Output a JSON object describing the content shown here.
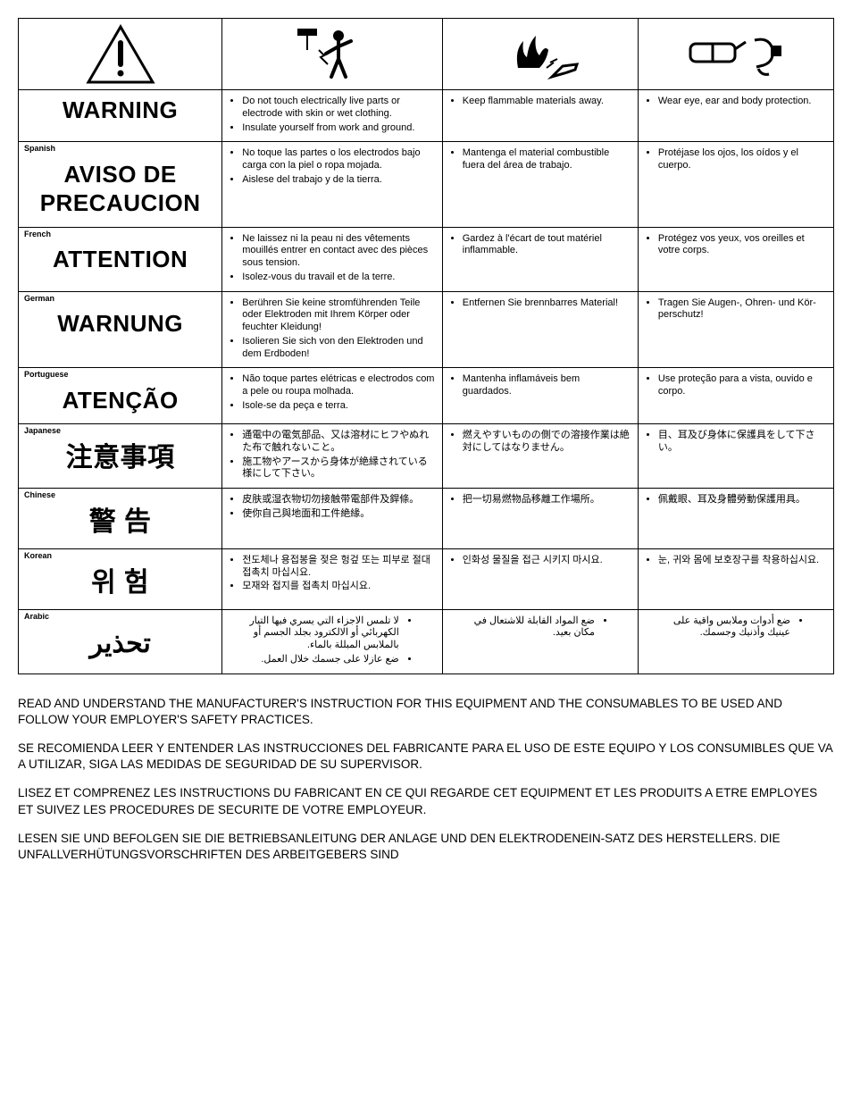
{
  "icons": {
    "alert": "alert-triangle",
    "shock": "electric-person",
    "fire": "flames-hand",
    "ppe": "goggles-earplugs"
  },
  "rows": [
    {
      "lang_label": "",
      "heading": "WARNING",
      "heading_class": "",
      "cells": [
        [
          "Do not touch electrically live parts or electrode with skin or wet clothing.",
          "Insulate yourself from work and ground."
        ],
        [
          "Keep flammable materials away."
        ],
        [
          "Wear eye, ear and body protection."
        ]
      ]
    },
    {
      "lang_label": "Spanish",
      "heading": "AVISO DE PRECAUCION",
      "heading_class": "",
      "cells": [
        [
          "No toque las partes o los electrodos bajo carga con la piel o ropa mojada.",
          "Aislese del trabajo y de la tierra."
        ],
        [
          "Mantenga el material combustible fuera del área de trabajo."
        ],
        [
          "Protéjase los ojos, los oídos y el cuerpo."
        ]
      ]
    },
    {
      "lang_label": "French",
      "heading": "ATTENTION",
      "heading_class": "",
      "cells": [
        [
          "Ne laissez ni la peau ni des vêtements mouillés entrer en contact avec des pièces sous tension.",
          "Isolez-vous du travail et de la terre."
        ],
        [
          "Gardez à l'écart de tout matériel inflammable."
        ],
        [
          "Protégez vos yeux, vos oreilles et votre corps."
        ]
      ]
    },
    {
      "lang_label": "German",
      "heading": "WARNUNG",
      "heading_class": "",
      "cells": [
        [
          "Berühren Sie keine stromführenden Teile oder Elektroden mit Ihrem Körper oder feuchter Kleidung!",
          "Isolieren Sie sich von den Elektroden und dem Erdboden!"
        ],
        [
          "Entfernen Sie brennbarres Material!"
        ],
        [
          "Tragen Sie Augen-, Ohren- und Kör-perschutz!"
        ]
      ]
    },
    {
      "lang_label": "Portuguese",
      "heading": "ATENÇÃO",
      "heading_class": "",
      "cells": [
        [
          "Não toque partes elétricas e electrodos com a pele ou roupa molhada.",
          "Isole-se da peça e terra."
        ],
        [
          "Mantenha inflamáveis bem guardados."
        ],
        [
          "Use proteção para a vista, ouvido e corpo."
        ]
      ]
    },
    {
      "lang_label": "Japanese",
      "heading": "注意事項",
      "heading_class": "cjk",
      "cells": [
        [
          "通電中の電気部品、又は溶材にヒフやぬれた布で触れないこと。",
          "施工物やアースから身体が絶縁されている様にして下さい。"
        ],
        [
          "燃えやすいものの側での溶接作業は絶対にしてはなりません。"
        ],
        [
          "目、耳及び身体に保護具をして下さい。"
        ]
      ]
    },
    {
      "lang_label": "Chinese",
      "heading": "警 告",
      "heading_class": "cjk",
      "cells": [
        [
          "皮肤或湿衣物切勿接触带電部件及銲條。",
          "使你自己與地面和工件絶緣。"
        ],
        [
          "把一切易燃物品移離工作場所。"
        ],
        [
          "佩戴眼、耳及身體勞動保護用具。"
        ]
      ]
    },
    {
      "lang_label": "Korean",
      "heading": "위 험",
      "heading_class": "cjk",
      "cells": [
        [
          "전도체나 용접봉을 젖은 헝겊 또는 피부로 절대 접촉치 마십시요.",
          "모재와 접지를 접촉치 마십시요."
        ],
        [
          "인화성 물질을 접근 시키지 마시요."
        ],
        [
          "눈, 귀와 몸에 보호장구를 착용하십시요."
        ]
      ]
    },
    {
      "lang_label": "Arabic",
      "heading": "تحذير",
      "heading_class": "cjk",
      "rtl": true,
      "cells": [
        [
          "لا تلمس الاجزاء التي يسري فيها التيار الكهربائي أو الالكترود بجلد الجسم أو بالملابس المبللة بالماء.",
          "ضع عازلا على جسمك خلال العمل."
        ],
        [
          "ضع المواد القابلة للاشتعال في مكان بعيد."
        ],
        [
          "ضع أدوات وملابس واقية على عينيك وأذنيك وجسمك."
        ]
      ]
    }
  ],
  "footer": [
    "READ AND UNDERSTAND THE MANUFACTURER'S INSTRUCTION FOR THIS EQUIPMENT AND THE CONSUMABLES TO BE USED AND FOLLOW YOUR EMPLOYER'S SAFETY PRACTICES.",
    "SE RECOMIENDA LEER Y ENTENDER LAS INSTRUCCIONES DEL FABRICANTE PARA EL USO DE ESTE EQUIPO Y LOS CONSUMIBLES QUE VA A UTILIZAR, SIGA LAS MEDIDAS DE SEGURIDAD DE SU SUPERVISOR.",
    "LISEZ ET COMPRENEZ LES INSTRUCTIONS DU FABRICANT EN CE QUI REGARDE CET EQUIPMENT ET LES PRODUITS A ETRE EMPLOYES ET SUIVEZ LES PROCEDURES DE SECURITE DE VOTRE EMPLOYEUR.",
    "LESEN SIE UND BEFOLGEN SIE DIE BETRIEBSANLEITUNG DER ANLAGE UND DEN ELEKTRODENEIN-SATZ DES HERSTELLERS. DIE UNFALLVERHÜTUNGSVORSCHRIFTEN DES ARBEITGEBERS SIND"
  ]
}
